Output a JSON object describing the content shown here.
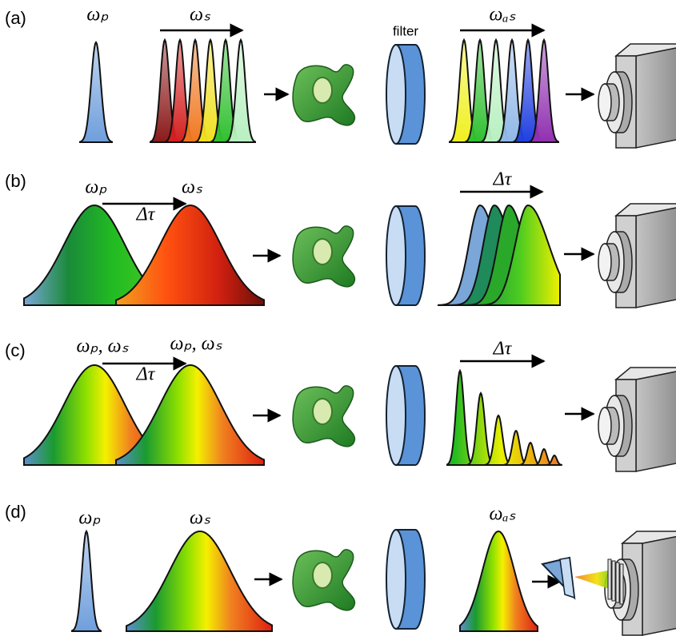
{
  "panels": [
    {
      "label": "(a)",
      "pump": "ωₚ",
      "stokes": "ωₛ",
      "filter": "filter",
      "anti_stokes": "ωₐₛ"
    },
    {
      "label": "(b)",
      "pump": "ωₚ",
      "stokes": "ωₛ",
      "delay": "Δτ",
      "output_delay": "Δτ"
    },
    {
      "label": "(c)",
      "pulse_1": "ωₚ, ωₛ",
      "pulse_2": "ωₚ, ωₛ",
      "delay": "Δτ",
      "output_delay": "Δτ"
    },
    {
      "label": "(d)",
      "pump": "ωₚ",
      "stokes": "ωₛ",
      "anti_stokes": "ωₐₛ"
    }
  ]
}
